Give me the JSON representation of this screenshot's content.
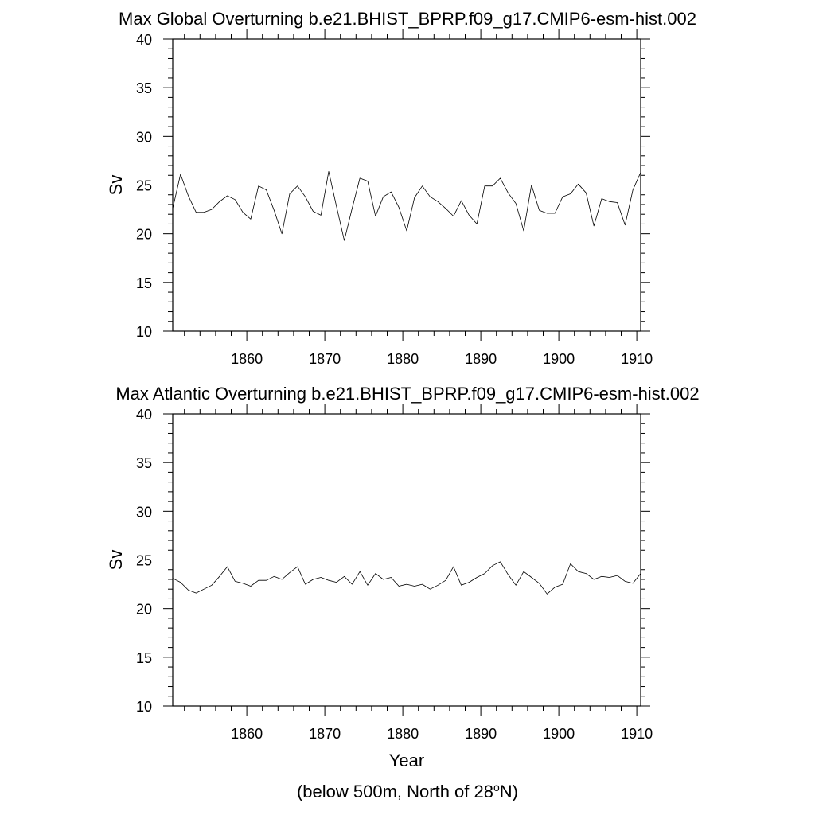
{
  "footnote": {
    "prefix": "(below 500m, North of 28",
    "superscript": "o",
    "suffix": "N)"
  },
  "chart_data": [
    {
      "type": "line",
      "title": "Max Global Overturning b.e21.BHIST_BPRP.f09_g17.CMIP6-esm-hist.002",
      "xlabel": "",
      "ylabel": "Sv",
      "xlim": [
        1850.5,
        1910.5
      ],
      "ylim": [
        10,
        40
      ],
      "x_ticks": [
        1860,
        1870,
        1880,
        1890,
        1900,
        1910
      ],
      "y_ticks": [
        10,
        15,
        20,
        25,
        30,
        35,
        40
      ],
      "grid": false,
      "series": [
        {
          "name": "Max Global Overturning",
          "x": [
            1850.5,
            1851.5,
            1852.5,
            1853.5,
            1854.5,
            1855.5,
            1856.5,
            1857.5,
            1858.5,
            1859.5,
            1860.5,
            1861.5,
            1862.5,
            1863.5,
            1864.5,
            1865.5,
            1866.5,
            1867.5,
            1868.5,
            1869.5,
            1870.5,
            1871.5,
            1872.5,
            1873.5,
            1874.5,
            1875.5,
            1876.5,
            1877.5,
            1878.5,
            1879.5,
            1880.5,
            1881.5,
            1882.5,
            1883.5,
            1884.5,
            1885.5,
            1886.5,
            1887.5,
            1888.5,
            1889.5,
            1890.5,
            1891.5,
            1892.5,
            1893.5,
            1894.5,
            1895.5,
            1896.5,
            1897.5,
            1898.5,
            1899.5,
            1900.5,
            1901.5,
            1902.5,
            1903.5,
            1904.5,
            1905.5,
            1906.5,
            1907.5,
            1908.5,
            1909.5,
            1910.5
          ],
          "values": [
            22.6,
            26.1,
            23.9,
            22.2,
            22.2,
            22.5,
            23.3,
            23.9,
            23.5,
            22.2,
            21.5,
            24.9,
            24.5,
            22.4,
            20.0,
            24.1,
            24.9,
            23.8,
            22.3,
            21.9,
            26.4,
            22.8,
            19.3,
            22.6,
            25.7,
            25.4,
            21.8,
            23.8,
            24.3,
            22.7,
            20.3,
            23.7,
            24.9,
            23.8,
            23.3,
            22.6,
            21.8,
            23.4,
            21.9,
            21.0,
            24.9,
            24.9,
            25.7,
            24.2,
            23.1,
            20.3,
            25.0,
            22.4,
            22.1,
            22.1,
            23.8,
            24.1,
            25.1,
            24.2,
            20.8,
            23.6,
            23.3,
            23.2,
            20.9,
            24.5,
            26.3
          ]
        }
      ]
    },
    {
      "type": "line",
      "title": "Max Atlantic Overturning b.e21.BHIST_BPRP.f09_g17.CMIP6-esm-hist.002",
      "xlabel": "Year",
      "ylabel": "Sv",
      "xlim": [
        1850.5,
        1910.5
      ],
      "ylim": [
        10,
        40
      ],
      "x_ticks": [
        1860,
        1870,
        1880,
        1890,
        1900,
        1910
      ],
      "y_ticks": [
        10,
        15,
        20,
        25,
        30,
        35,
        40
      ],
      "grid": false,
      "series": [
        {
          "name": "Max Atlantic Overturning",
          "x": [
            1850.5,
            1851.5,
            1852.5,
            1853.5,
            1854.5,
            1855.5,
            1856.5,
            1857.5,
            1858.5,
            1859.5,
            1860.5,
            1861.5,
            1862.5,
            1863.5,
            1864.5,
            1865.5,
            1866.5,
            1867.5,
            1868.5,
            1869.5,
            1870.5,
            1871.5,
            1872.5,
            1873.5,
            1874.5,
            1875.5,
            1876.5,
            1877.5,
            1878.5,
            1879.5,
            1880.5,
            1881.5,
            1882.5,
            1883.5,
            1884.5,
            1885.5,
            1886.5,
            1887.5,
            1888.5,
            1889.5,
            1890.5,
            1891.5,
            1892.5,
            1893.5,
            1894.5,
            1895.5,
            1896.5,
            1897.5,
            1898.5,
            1899.5,
            1900.5,
            1901.5,
            1902.5,
            1903.5,
            1904.5,
            1905.5,
            1906.5,
            1907.5,
            1908.5,
            1909.5,
            1910.5
          ],
          "values": [
            23.1,
            22.7,
            21.9,
            21.6,
            22.0,
            22.4,
            23.3,
            24.3,
            22.8,
            22.6,
            22.3,
            22.9,
            22.9,
            23.3,
            23.0,
            23.7,
            24.3,
            22.5,
            23.0,
            23.2,
            22.9,
            22.7,
            23.3,
            22.5,
            23.8,
            22.4,
            23.6,
            23.0,
            23.2,
            22.3,
            22.5,
            22.3,
            22.5,
            22.0,
            22.4,
            22.9,
            24.3,
            22.4,
            22.7,
            23.2,
            23.6,
            24.4,
            24.8,
            23.5,
            22.4,
            23.8,
            23.2,
            22.6,
            21.5,
            22.2,
            22.5,
            24.6,
            23.8,
            23.6,
            23.0,
            23.3,
            23.2,
            23.4,
            22.8,
            22.6,
            23.6
          ]
        }
      ]
    }
  ]
}
